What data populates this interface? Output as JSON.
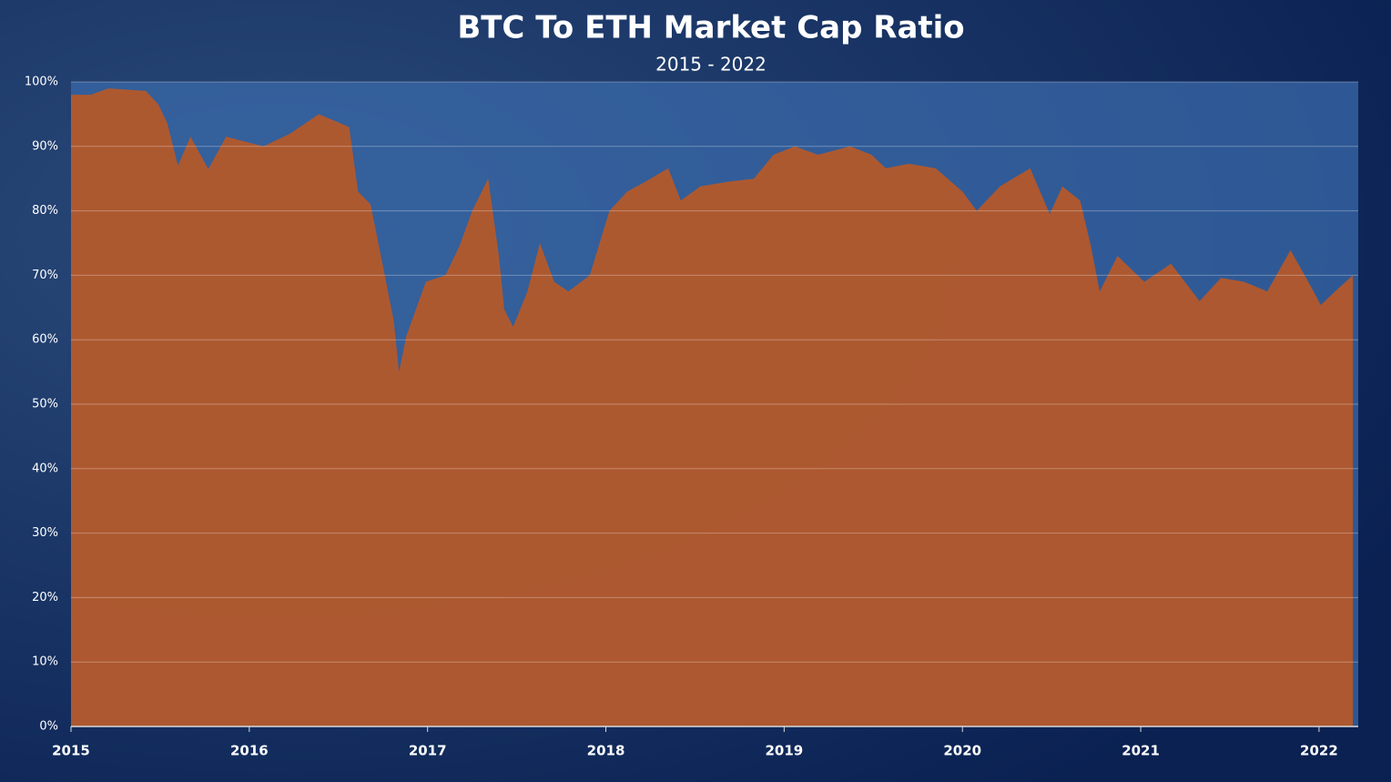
{
  "chart_data": {
    "type": "area",
    "title": "BTC To ETH Market Cap Ratio",
    "subtitle": "2015 - 2022",
    "x": [
      2015.0,
      2015.11,
      2015.21,
      2015.42,
      2015.49,
      2015.54,
      2015.6,
      2015.67,
      2015.77,
      2015.87,
      2016.08,
      2016.23,
      2016.39,
      2016.56,
      2016.61,
      2016.68,
      2016.76,
      2016.81,
      2016.84,
      2016.88,
      2016.99,
      2017.1,
      2017.18,
      2017.25,
      2017.34,
      2017.4,
      2017.43,
      2017.48,
      2017.56,
      2017.63,
      2017.71,
      2017.79,
      2017.91,
      2018.02,
      2018.12,
      2018.22,
      2018.35,
      2018.42,
      2018.53,
      2018.68,
      2018.83,
      2018.94,
      2019.06,
      2019.19,
      2019.37,
      2019.49,
      2019.57,
      2019.7,
      2019.85,
      2020.0,
      2020.08,
      2020.21,
      2020.38,
      2020.49,
      2020.56,
      2020.66,
      2020.72,
      2020.77,
      2020.87,
      2021.02,
      2021.17,
      2021.33,
      2021.45,
      2021.58,
      2021.71,
      2021.84,
      2021.94,
      2022.01,
      2022.09,
      2022.19
    ],
    "values": [
      98,
      98,
      99,
      98.6,
      96.5,
      93.6,
      87,
      91.5,
      86.5,
      91.5,
      90,
      92,
      95,
      93,
      83,
      81,
      70,
      63,
      55,
      60.5,
      69,
      70,
      74.6,
      80,
      85,
      73,
      64.7,
      62,
      67.5,
      75,
      69,
      67.5,
      70,
      80,
      83,
      84.5,
      86.6,
      81.6,
      83.8,
      84.5,
      85,
      88.7,
      90,
      88.7,
      90,
      88.7,
      86.6,
      87.3,
      86.6,
      83,
      80,
      83.8,
      86.6,
      79.5,
      83.8,
      81.6,
      74.6,
      67.5,
      73,
      69,
      71.8,
      66,
      69.6,
      69,
      67.5,
      73.9,
      69,
      65.4,
      67.5,
      70
    ],
    "color": "#b4582a",
    "xlim": [
      2015,
      2022.22
    ],
    "xticks": [
      2015,
      2016,
      2017,
      2018,
      2019,
      2020,
      2021,
      2022
    ],
    "ylim": [
      0,
      100
    ],
    "yticks": [
      {
        "value": 0,
        "label": "0%"
      },
      {
        "value": 10,
        "label": "10%"
      },
      {
        "value": 20,
        "label": "20%"
      },
      {
        "value": 30,
        "label": "30%"
      },
      {
        "value": 40,
        "label": "40%"
      },
      {
        "value": 50,
        "label": "50%"
      },
      {
        "value": 60,
        "label": "60%"
      },
      {
        "value": 70,
        "label": "70%"
      },
      {
        "value": 80,
        "label": "80%"
      },
      {
        "value": 90,
        "label": "90%"
      },
      {
        "value": 100,
        "label": "100%"
      }
    ],
    "grid": true
  }
}
